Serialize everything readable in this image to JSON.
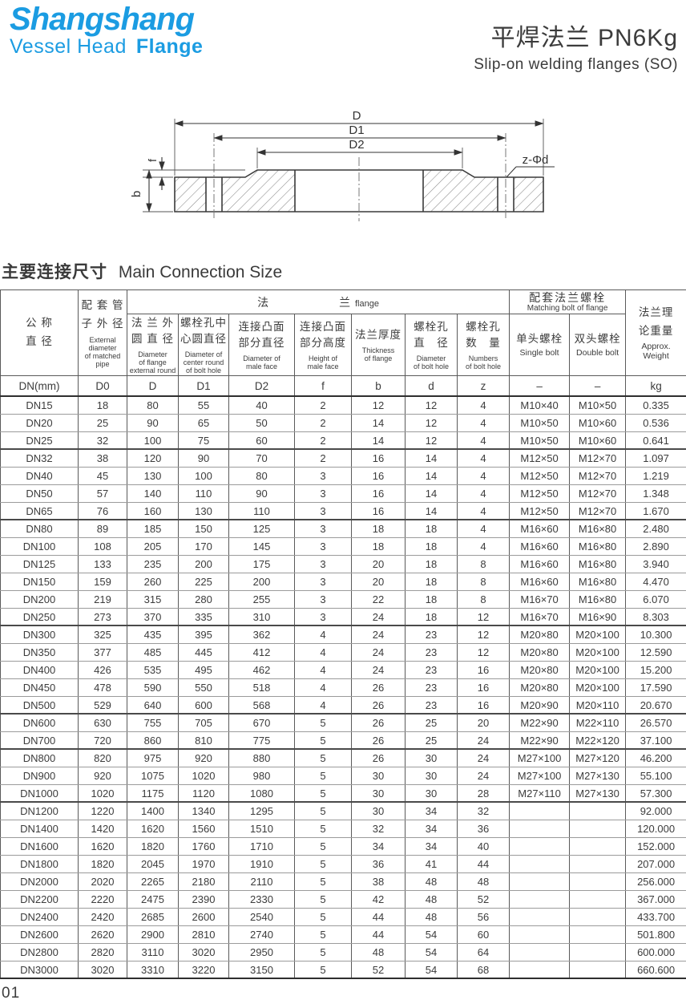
{
  "logo": {
    "brand": "Shangshang",
    "line2_word1": "Vessel Head",
    "line2_word2": "Flange"
  },
  "colors": {
    "brand_blue": "#1b9ce2",
    "text_dark": "#3c3c3c"
  },
  "header": {
    "title_cn": "平焊法兰 PN6Kg",
    "subtitle_en": "Slip-on welding flanges (SO)"
  },
  "diagram": {
    "dim_d": "D",
    "dim_d1": "D1",
    "dim_d2": "D2",
    "dim_f": "f",
    "dim_b": "b",
    "dim_bolt": "z-Φd"
  },
  "section_title": {
    "cn": "主要连接尺寸",
    "en": "Main Connection Size"
  },
  "table": {
    "groups": {
      "flange_cn_1": "法",
      "flange_cn_2": "兰",
      "flange_en": "flange",
      "bolt_cn": "配套法兰螺栓",
      "bolt_en": "Matching bolt of flange"
    },
    "columns": [
      {
        "sym": "DN(mm)",
        "cn": "公 称\n直 径",
        "en": ""
      },
      {
        "sym": "D0",
        "cn": "配 套 管\n子 外 径",
        "en": "External\ndiameter\nof matched\npipe"
      },
      {
        "sym": "D",
        "cn": "法 兰 外\n圆 直 径",
        "en": "Diameter\nof flange\nexternal round"
      },
      {
        "sym": "D1",
        "cn": "螺栓孔中\n心圆直径",
        "en": "Diameter of\ncenter round\nof bolt hole"
      },
      {
        "sym": "D2",
        "cn": "连接凸面\n部分直径",
        "en": "Diameter of\nmale face"
      },
      {
        "sym": "f",
        "cn": "连接凸面\n部分高度",
        "en": "Height of\nmale face"
      },
      {
        "sym": "b",
        "cn": "法兰厚度",
        "en": "Thickness\nof flange"
      },
      {
        "sym": "d",
        "cn": "螺栓孔\n直　径",
        "en": "Diameter\nof bolt hole"
      },
      {
        "sym": "z",
        "cn": "螺栓孔\n数　量",
        "en": "Numbers\nof bolt hole"
      },
      {
        "sym": "–",
        "cn": "单头螺栓",
        "en": "Single bolt"
      },
      {
        "sym": "–",
        "cn": "双头螺栓",
        "en": "Double bolt"
      },
      {
        "sym": "kg",
        "cn": "法兰理\n论重量",
        "en": "Approx.\nWeight"
      }
    ],
    "rows": [
      [
        "DN15",
        "18",
        "80",
        "55",
        "40",
        "2",
        "12",
        "12",
        "4",
        "M10×40",
        "M10×50",
        "0.335"
      ],
      [
        "DN20",
        "25",
        "90",
        "65",
        "50",
        "2",
        "14",
        "12",
        "4",
        "M10×50",
        "M10×60",
        "0.536"
      ],
      [
        "DN25",
        "32",
        "100",
        "75",
        "60",
        "2",
        "14",
        "12",
        "4",
        "M10×50",
        "M10×60",
        "0.641"
      ],
      [
        "DN32",
        "38",
        "120",
        "90",
        "70",
        "2",
        "16",
        "14",
        "4",
        "M12×50",
        "M12×70",
        "1.097"
      ],
      [
        "DN40",
        "45",
        "130",
        "100",
        "80",
        "3",
        "16",
        "14",
        "4",
        "M12×50",
        "M12×70",
        "1.219"
      ],
      [
        "DN50",
        "57",
        "140",
        "110",
        "90",
        "3",
        "16",
        "14",
        "4",
        "M12×50",
        "M12×70",
        "1.348"
      ],
      [
        "DN65",
        "76",
        "160",
        "130",
        "110",
        "3",
        "16",
        "14",
        "4",
        "M12×50",
        "M12×70",
        "1.670"
      ],
      [
        "DN80",
        "89",
        "185",
        "150",
        "125",
        "3",
        "18",
        "18",
        "4",
        "M16×60",
        "M16×80",
        "2.480"
      ],
      [
        "DN100",
        "108",
        "205",
        "170",
        "145",
        "3",
        "18",
        "18",
        "4",
        "M16×60",
        "M16×80",
        "2.890"
      ],
      [
        "DN125",
        "133",
        "235",
        "200",
        "175",
        "3",
        "20",
        "18",
        "8",
        "M16×60",
        "M16×80",
        "3.940"
      ],
      [
        "DN150",
        "159",
        "260",
        "225",
        "200",
        "3",
        "20",
        "18",
        "8",
        "M16×60",
        "M16×80",
        "4.470"
      ],
      [
        "DN200",
        "219",
        "315",
        "280",
        "255",
        "3",
        "22",
        "18",
        "8",
        "M16×70",
        "M16×80",
        "6.070"
      ],
      [
        "DN250",
        "273",
        "370",
        "335",
        "310",
        "3",
        "24",
        "18",
        "12",
        "M16×70",
        "M16×90",
        "8.303"
      ],
      [
        "DN300",
        "325",
        "435",
        "395",
        "362",
        "4",
        "24",
        "23",
        "12",
        "M20×80",
        "M20×100",
        "10.300"
      ],
      [
        "DN350",
        "377",
        "485",
        "445",
        "412",
        "4",
        "24",
        "23",
        "12",
        "M20×80",
        "M20×100",
        "12.590"
      ],
      [
        "DN400",
        "426",
        "535",
        "495",
        "462",
        "4",
        "24",
        "23",
        "16",
        "M20×80",
        "M20×100",
        "15.200"
      ],
      [
        "DN450",
        "478",
        "590",
        "550",
        "518",
        "4",
        "26",
        "23",
        "16",
        "M20×80",
        "M20×100",
        "17.590"
      ],
      [
        "DN500",
        "529",
        "640",
        "600",
        "568",
        "4",
        "26",
        "23",
        "16",
        "M20×90",
        "M20×110",
        "20.670"
      ],
      [
        "DN600",
        "630",
        "755",
        "705",
        "670",
        "5",
        "26",
        "25",
        "20",
        "M22×90",
        "M22×110",
        "26.570"
      ],
      [
        "DN700",
        "720",
        "860",
        "810",
        "775",
        "5",
        "26",
        "25",
        "24",
        "M22×90",
        "M22×120",
        "37.100"
      ],
      [
        "DN800",
        "820",
        "975",
        "920",
        "880",
        "5",
        "26",
        "30",
        "24",
        "M27×100",
        "M27×120",
        "46.200"
      ],
      [
        "DN900",
        "920",
        "1075",
        "1020",
        "980",
        "5",
        "30",
        "30",
        "24",
        "M27×100",
        "M27×130",
        "55.100"
      ],
      [
        "DN1000",
        "1020",
        "1175",
        "1120",
        "1080",
        "5",
        "30",
        "30",
        "28",
        "M27×110",
        "M27×130",
        "57.300"
      ],
      [
        "DN1200",
        "1220",
        "1400",
        "1340",
        "1295",
        "5",
        "30",
        "34",
        "32",
        "",
        "",
        "92.000"
      ],
      [
        "DN1400",
        "1420",
        "1620",
        "1560",
        "1510",
        "5",
        "32",
        "34",
        "36",
        "",
        "",
        "120.000"
      ],
      [
        "DN1600",
        "1620",
        "1820",
        "1760",
        "1710",
        "5",
        "34",
        "34",
        "40",
        "",
        "",
        "152.000"
      ],
      [
        "DN1800",
        "1820",
        "2045",
        "1970",
        "1910",
        "5",
        "36",
        "41",
        "44",
        "",
        "",
        "207.000"
      ],
      [
        "DN2000",
        "2020",
        "2265",
        "2180",
        "2110",
        "5",
        "38",
        "48",
        "48",
        "",
        "",
        "256.000"
      ],
      [
        "DN2200",
        "2220",
        "2475",
        "2390",
        "2330",
        "5",
        "42",
        "48",
        "52",
        "",
        "",
        "367.000"
      ],
      [
        "DN2400",
        "2420",
        "2685",
        "2600",
        "2540",
        "5",
        "44",
        "48",
        "56",
        "",
        "",
        "433.700"
      ],
      [
        "DN2600",
        "2620",
        "2900",
        "2810",
        "2740",
        "5",
        "44",
        "54",
        "60",
        "",
        "",
        "501.800"
      ],
      [
        "DN2800",
        "2820",
        "3110",
        "3020",
        "2950",
        "5",
        "48",
        "54",
        "64",
        "",
        "",
        "600.000"
      ],
      [
        "DN3000",
        "3020",
        "3310",
        "3220",
        "3150",
        "5",
        "52",
        "54",
        "68",
        "",
        "",
        "660.600"
      ]
    ]
  },
  "page_number": "01"
}
